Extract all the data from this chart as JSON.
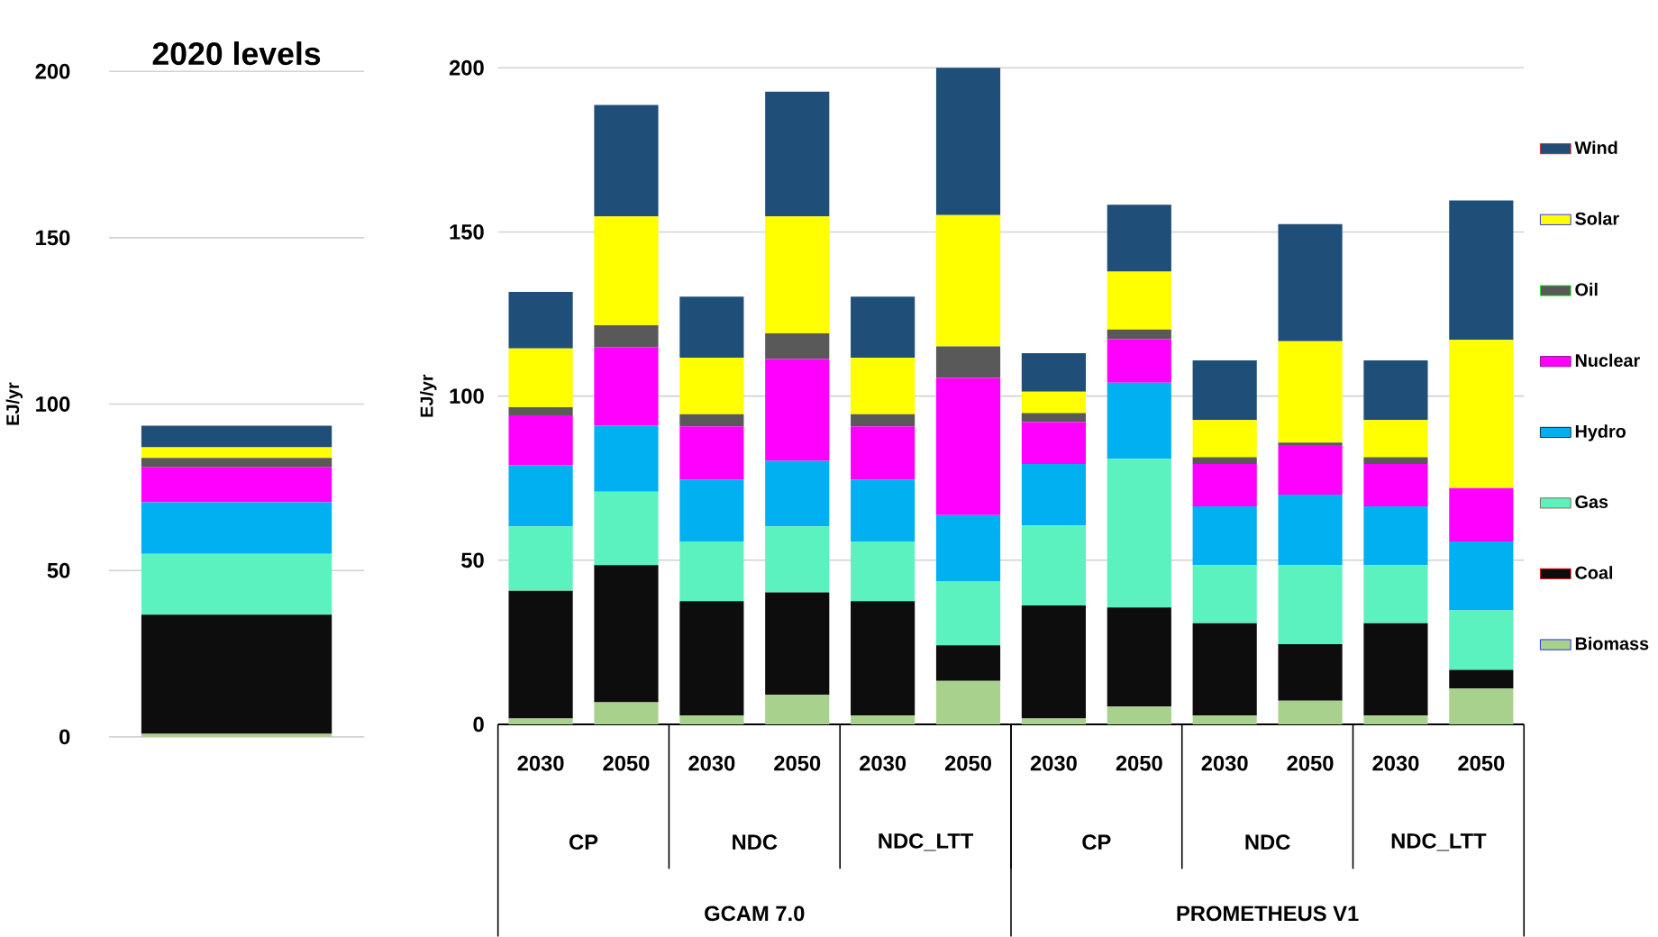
{
  "chart_data": [
    {
      "type": "bar",
      "stacked": true,
      "title": "2020 levels",
      "ylabel": "EJ/yr",
      "categories": [
        null
      ],
      "ylim": [
        0,
        200
      ],
      "yticks": [
        0,
        50,
        100,
        150,
        200
      ],
      "grid": "y",
      "tick_labels": "y",
      "series": [
        {
          "color": "#a9d18e",
          "values": [
            0.9
          ]
        },
        {
          "color": "#0d0d0d",
          "values": [
            35.8
          ]
        },
        {
          "color": "#5cf2c0",
          "values": [
            18.3
          ]
        },
        {
          "color": "#00b0f0",
          "values": [
            15.5
          ]
        },
        {
          "color": "#ff00ff",
          "values": [
            10.6
          ]
        },
        {
          "color": "#595959",
          "values": [
            2.7
          ]
        },
        {
          "color": "#ffff00",
          "values": [
            3.2
          ]
        },
        {
          "color": "#1f4e79",
          "values": [
            6.5
          ]
        }
      ]
    },
    {
      "type": "bar",
      "stacked": true,
      "ylabel": "EJ/yr",
      "categories": [
        "2030",
        "2050",
        "2030",
        "2050",
        "2030",
        "2050",
        "2030",
        "2050",
        "2030",
        "2050",
        "2030",
        "2050"
      ],
      "ylim": [
        0,
        200
      ],
      "yticks": [
        0,
        50,
        100,
        150,
        200
      ],
      "grid": "y",
      "legend": "right",
      "annotations": [
        "CP",
        "NDC",
        "NDC_LTT",
        "CP",
        "NDC",
        "NDC_LTT",
        "GCAM 7.0",
        "PROMETHEUS V1"
      ],
      "series": [
        {
          "name": "Biomass",
          "color": "#a9d18e",
          "values": [
            1.8,
            6.7,
            2.7,
            9.0,
            2.7,
            13.2,
            1.8,
            5.4,
            2.7,
            7.2,
            2.7,
            10.9
          ]
        },
        {
          "name": "Coal",
          "color": "#0d0d0d",
          "values": [
            38.9,
            41.8,
            34.8,
            31.2,
            34.8,
            10.9,
            34.4,
            30.2,
            28.1,
            17.2,
            28.1,
            5.7
          ]
        },
        {
          "name": "Gas",
          "color": "#5cf2c0",
          "values": [
            19.6,
            22.4,
            18.2,
            20.1,
            18.2,
            19.5,
            24.4,
            45.3,
            17.7,
            24.1,
            17.7,
            18.1
          ]
        },
        {
          "name": "Hydro",
          "color": "#00b0f0",
          "values": [
            18.6,
            20.1,
            18.9,
            20.0,
            18.9,
            20.1,
            18.7,
            23.2,
            17.9,
            21.5,
            17.9,
            21.0
          ]
        },
        {
          "name": "Nuclear",
          "color": "#ff00ff",
          "values": [
            15.2,
            23.9,
            16.2,
            31.0,
            16.2,
            41.8,
            12.8,
            13.2,
            12.9,
            15.1,
            12.9,
            16.3
          ]
        },
        {
          "name": "Oil",
          "color": "#595959",
          "values": [
            2.5,
            6.7,
            3.7,
            7.8,
            3.7,
            9.6,
            2.7,
            3.0,
            2.1,
            0.7,
            2.1,
            0
          ]
        },
        {
          "name": "Solar",
          "color": "#ffff00",
          "values": [
            17.9,
            33.1,
            17.2,
            35.6,
            17.2,
            40.0,
            6.5,
            17.6,
            11.3,
            30.9,
            11.3,
            45.1
          ]
        },
        {
          "name": "Wind",
          "color": "#1f4e79",
          "values": [
            17.2,
            34.0,
            18.6,
            38.0,
            18.6,
            44.9,
            11.8,
            20.4,
            18.2,
            35.7,
            18.2,
            42.5
          ]
        }
      ]
    }
  ]
}
